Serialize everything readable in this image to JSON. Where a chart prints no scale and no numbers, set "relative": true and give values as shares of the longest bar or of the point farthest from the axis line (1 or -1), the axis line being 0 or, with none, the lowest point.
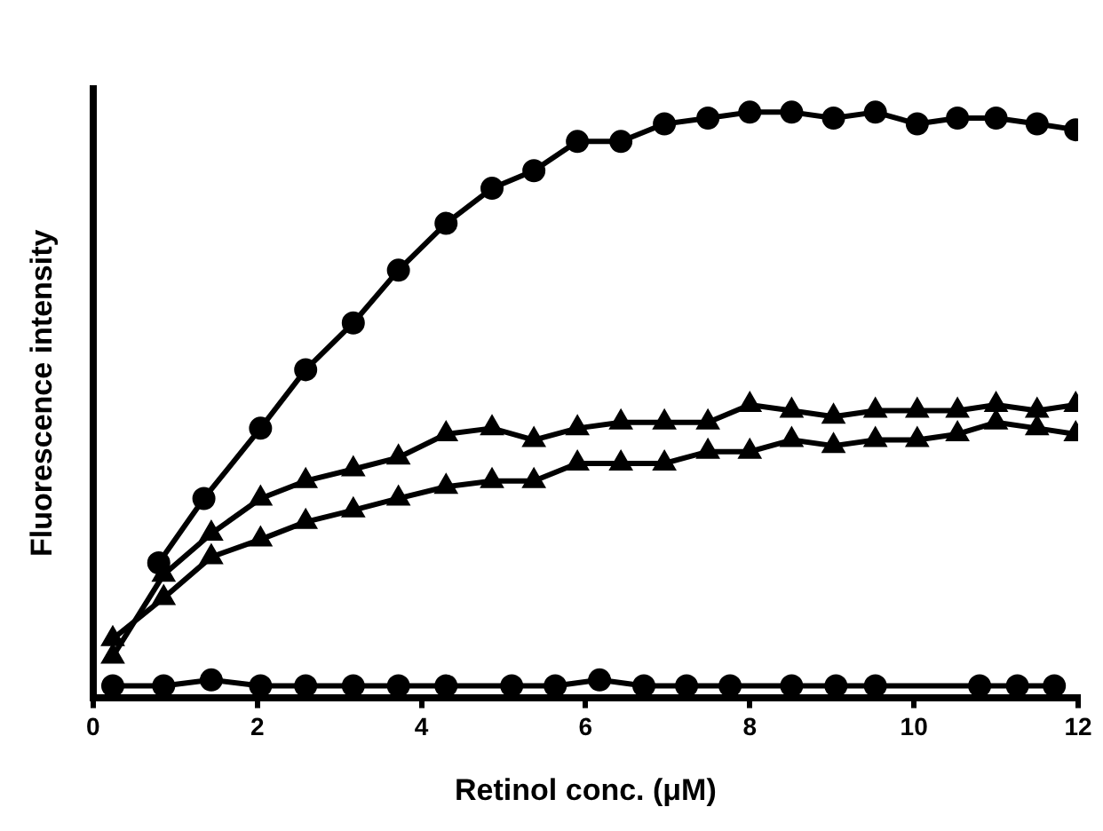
{
  "chart_data": {
    "type": "line",
    "relative": true,
    "xlabel": "Retinol conc. (μM)",
    "ylabel": "Fluorescence intensity",
    "xlim": [
      0,
      12
    ],
    "xticks": [
      0,
      2,
      4,
      6,
      8,
      10,
      12
    ],
    "grid": false,
    "legend": false,
    "line_style": "solid",
    "series": [
      {
        "color": "#000000",
        "marker": "circle",
        "x": [
          0.8,
          1.35,
          2.04,
          2.59,
          3.17,
          3.72,
          4.3,
          4.86,
          5.37,
          5.9,
          6.43,
          6.96,
          7.49,
          8.0,
          8.51,
          9.02,
          9.53,
          10.04,
          10.53,
          11.0,
          11.5,
          11.97
        ],
        "values": [
          0.23,
          0.34,
          0.46,
          0.56,
          0.64,
          0.73,
          0.81,
          0.87,
          0.9,
          0.95,
          0.95,
          0.98,
          0.99,
          1,
          1,
          0.99,
          1,
          0.98,
          0.99,
          0.99,
          0.98,
          0.97
        ]
      },
      {
        "color": "#000000",
        "marker": "triangle",
        "x": [
          0.24,
          0.86,
          1.44,
          2.04,
          2.59,
          3.17,
          3.72,
          4.3,
          4.86,
          5.37,
          5.9,
          6.43,
          6.96,
          7.49,
          8.0,
          8.51,
          9.02,
          9.53,
          10.04,
          10.53,
          11.0,
          11.5,
          11.97
        ],
        "values": [
          0.07,
          0.21,
          0.28,
          0.34,
          0.37,
          0.39,
          0.41,
          0.45,
          0.46,
          0.44,
          0.46,
          0.47,
          0.47,
          0.47,
          0.5,
          0.49,
          0.48,
          0.49,
          0.49,
          0.49,
          0.5,
          0.49,
          0.5
        ]
      },
      {
        "color": "#000000",
        "marker": "triangle",
        "x": [
          0.24,
          0.86,
          1.44,
          2.04,
          2.59,
          3.17,
          3.72,
          4.3,
          4.86,
          5.37,
          5.9,
          6.43,
          6.96,
          7.49,
          8.0,
          8.51,
          9.02,
          9.53,
          10.04,
          10.53,
          11.0,
          11.5,
          11.97
        ],
        "values": [
          0.1,
          0.17,
          0.24,
          0.27,
          0.3,
          0.32,
          0.34,
          0.36,
          0.37,
          0.37,
          0.4,
          0.4,
          0.4,
          0.42,
          0.42,
          0.44,
          0.43,
          0.44,
          0.44,
          0.45,
          0.47,
          0.46,
          0.45
        ]
      },
      {
        "color": "#000000",
        "marker": "circle",
        "x": [
          0.24,
          0.86,
          1.44,
          2.04,
          2.59,
          3.17,
          3.72,
          4.3,
          5.1,
          5.63,
          6.17,
          6.71,
          7.23,
          7.76,
          8.51,
          9.05,
          9.53,
          10.8,
          11.26,
          11.71
        ],
        "values": [
          0.02,
          0.02,
          0.03,
          0.02,
          0.02,
          0.02,
          0.02,
          0.02,
          0.02,
          0.02,
          0.03,
          0.02,
          0.02,
          0.02,
          0.02,
          0.02,
          0.02,
          0.02,
          0.02,
          0.02
        ]
      }
    ]
  }
}
